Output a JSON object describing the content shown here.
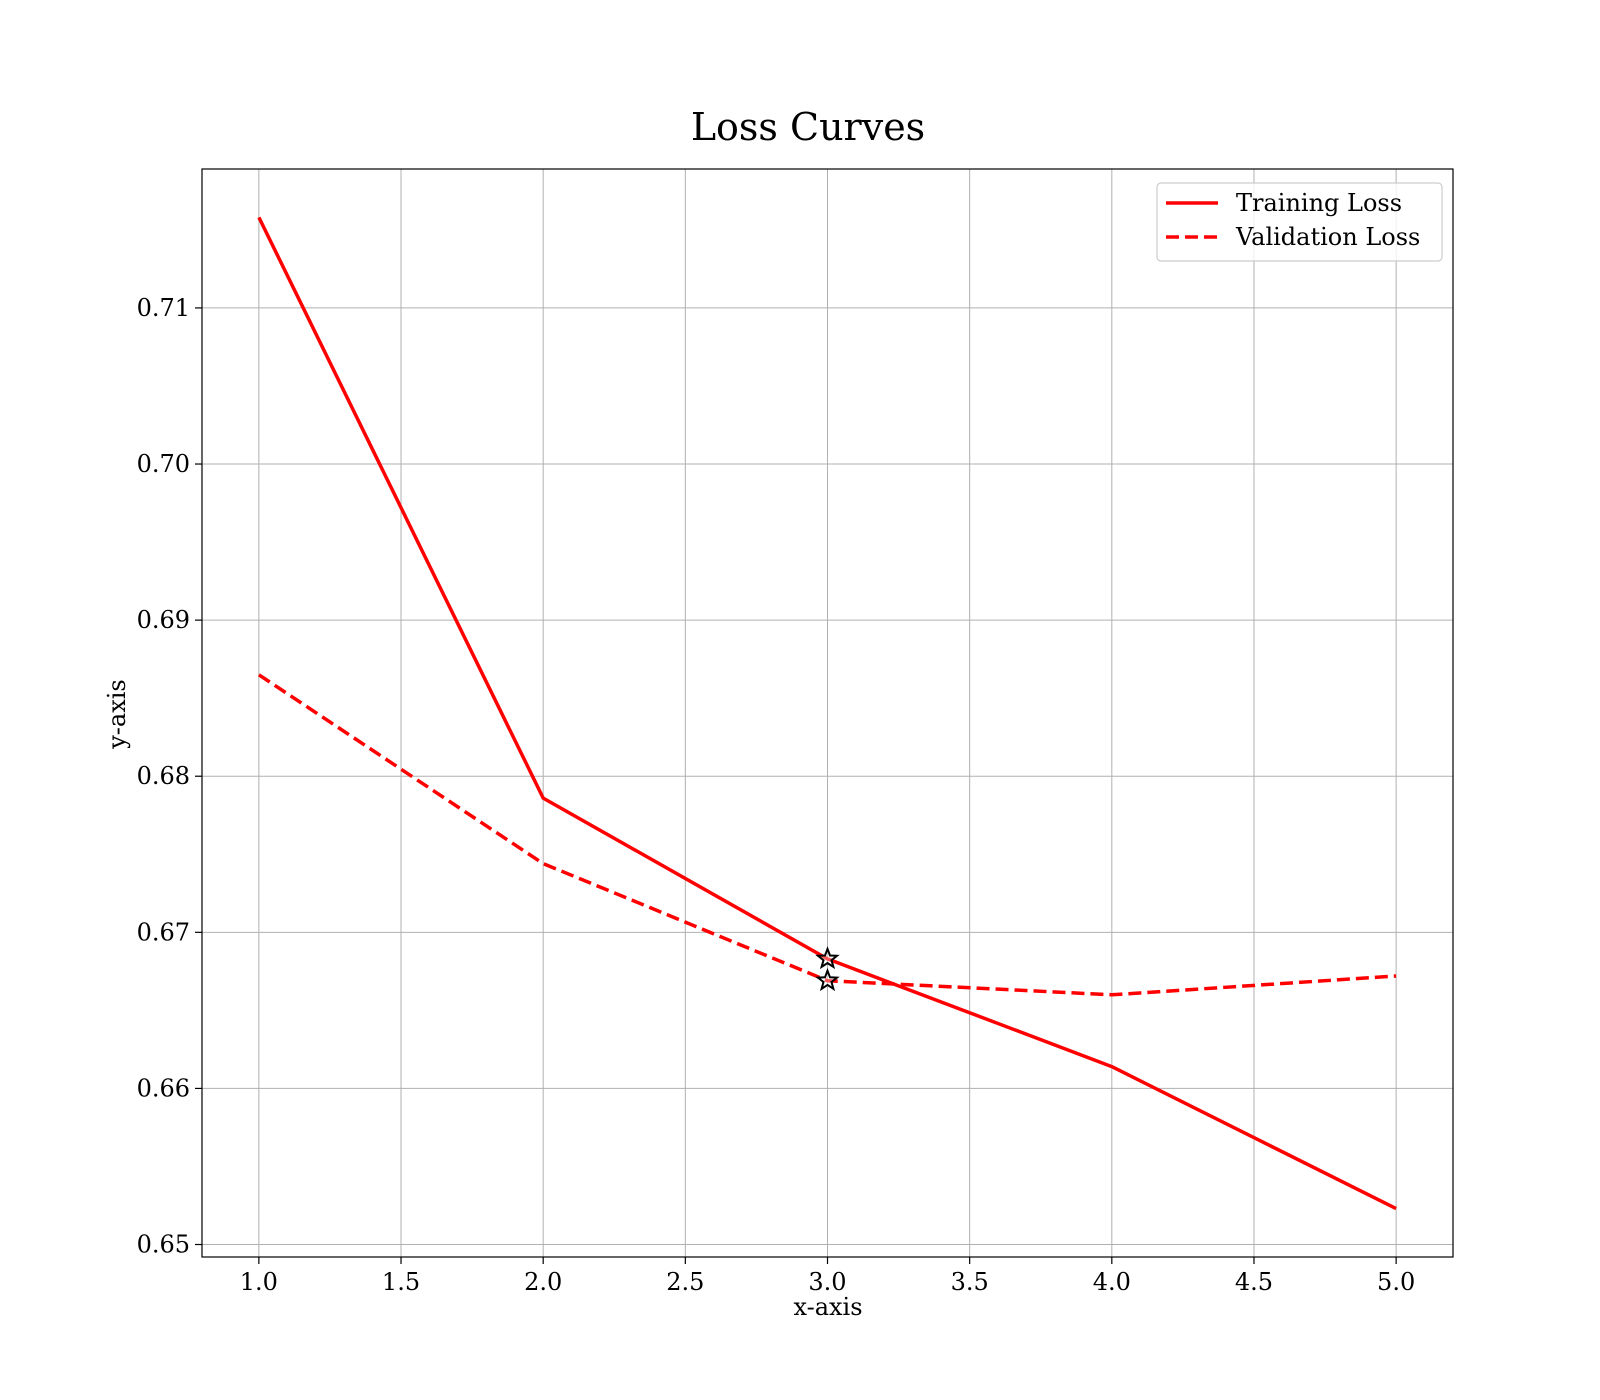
{
  "chart_data": {
    "type": "line",
    "title": "Loss Curves",
    "xlabel": "x-axis",
    "ylabel": "y-axis",
    "xlim": [
      0.8,
      5.2
    ],
    "ylim": [
      0.6492,
      0.7189
    ],
    "x_ticks": [
      1.0,
      1.5,
      2.0,
      2.5,
      3.0,
      3.5,
      4.0,
      4.5,
      5.0
    ],
    "x_tick_labels": [
      "1.0",
      "1.5",
      "2.0",
      "2.5",
      "3.0",
      "3.5",
      "4.0",
      "4.5",
      "5.0"
    ],
    "y_ticks": [
      0.65,
      0.66,
      0.67,
      0.68,
      0.69,
      0.7,
      0.71
    ],
    "y_tick_labels": [
      "0.65",
      "0.66",
      "0.67",
      "0.68",
      "0.69",
      "0.70",
      "0.71"
    ],
    "grid": true,
    "legend_position": "top-right",
    "x": [
      1,
      2,
      3,
      4,
      5
    ],
    "series": [
      {
        "name": "Training Loss",
        "values": [
          0.7158,
          0.6786,
          0.6683,
          0.6614,
          0.6523
        ],
        "color": "#ff0000",
        "style": "solid"
      },
      {
        "name": "Validation Loss",
        "values": [
          0.6865,
          0.6744,
          0.6669,
          0.666,
          0.6672
        ],
        "color": "#ff0000",
        "style": "dashed"
      }
    ],
    "markers": [
      {
        "series": "Training Loss",
        "x": 3,
        "y": 0.6683,
        "shape": "star",
        "color": "#000000"
      },
      {
        "series": "Validation Loss",
        "x": 3,
        "y": 0.6669,
        "shape": "star",
        "color": "#000000"
      }
    ]
  }
}
